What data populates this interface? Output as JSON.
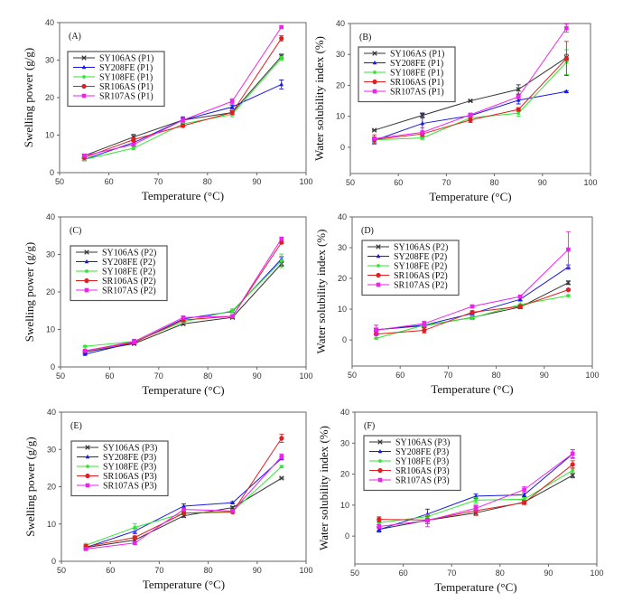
{
  "figure": {
    "series_colors": {
      "SY106AS": "#333333",
      "SY208FE": "#1a1adf",
      "SY108FE": "#33e633",
      "SR106AS": "#e02020",
      "SR107AS": "#ee22ee"
    }
  },
  "chart_data": [
    {
      "id": "A",
      "type": "line",
      "panel_label": "(A)",
      "xlabel": "Temperature (°C)",
      "ylabel": "Swelling power (g/g)",
      "x": [
        55,
        65,
        75,
        85,
        95
      ],
      "xlim": [
        50,
        100
      ],
      "ylim": [
        0,
        40
      ],
      "xticks": [
        50,
        60,
        70,
        80,
        90,
        100
      ],
      "yticks": [
        0,
        10,
        20,
        30,
        40
      ],
      "legend_position": "upper-left",
      "series": [
        {
          "name": "SY106AS (P1)",
          "key": "SY106AS",
          "marker": "x",
          "values": [
            4.5,
            9.5,
            14.0,
            16.0,
            31.0
          ],
          "errors": [
            0.4,
            0.7,
            0.6,
            0.6,
            0.6
          ]
        },
        {
          "name": "SY208FE (P1)",
          "key": "SY208FE",
          "marker": "triangle",
          "values": [
            3.5,
            8.0,
            14.0,
            17.5,
            23.5
          ],
          "errors": [
            0.3,
            0.5,
            0.9,
            0.5,
            1.2
          ]
        },
        {
          "name": "SY108FE (P1)",
          "key": "SY108FE",
          "marker": "dot",
          "values": [
            3.5,
            6.5,
            13.0,
            15.5,
            30.5
          ],
          "errors": [
            0.3,
            0.4,
            0.4,
            0.6,
            0.5
          ]
        },
        {
          "name": "SR106AS (P1)",
          "key": "SR106AS",
          "marker": "circle",
          "values": [
            4.0,
            8.8,
            12.5,
            16.0,
            35.8
          ],
          "errors": [
            0.3,
            0.5,
            0.3,
            0.4,
            0.7
          ]
        },
        {
          "name": "SR107AS (P1)",
          "key": "SR107AS",
          "marker": "square",
          "values": [
            4.5,
            7.5,
            14.0,
            19.0,
            38.8
          ],
          "errors": [
            0.3,
            0.4,
            0.5,
            0.7,
            0.3
          ]
        }
      ]
    },
    {
      "id": "B",
      "type": "line",
      "panel_label": "(B)",
      "xlabel": "Temperature (°C)",
      "ylabel": "Water solubility index (%)",
      "x": [
        55,
        65,
        75,
        85,
        95
      ],
      "xlim": [
        50,
        100
      ],
      "ylim": [
        -8.5,
        40
      ],
      "xticks": [
        50,
        60,
        70,
        80,
        90,
        100
      ],
      "yticks": [
        0,
        10,
        20,
        30,
        40
      ],
      "legend_position": "upper-left",
      "series": [
        {
          "name": "SY106AS (P1)",
          "key": "SY106AS",
          "marker": "x",
          "values": [
            5.5,
            10.3,
            15.0,
            18.7,
            29.0
          ],
          "errors": [
            0.2,
            0.8,
            0.2,
            1.5,
            1.0
          ]
        },
        {
          "name": "SY208FE (P1)",
          "key": "SY208FE",
          "marker": "triangle",
          "values": [
            2.2,
            7.7,
            10.2,
            15.2,
            18.0
          ],
          "errors": [
            0.8,
            3.3,
            0.5,
            1.2,
            0.3
          ]
        },
        {
          "name": "SY108FE (P1)",
          "key": "SY108FE",
          "marker": "dot",
          "values": [
            2.4,
            3.0,
            9.5,
            11.0,
            27.5
          ],
          "errors": [
            0.4,
            0.5,
            0.6,
            1.0,
            4.0
          ]
        },
        {
          "name": "SR106AS (P1)",
          "key": "SR106AS",
          "marker": "circle",
          "values": [
            2.5,
            4.3,
            8.8,
            12.2,
            28.7
          ],
          "errors": [
            1.5,
            0.6,
            0.8,
            0.6,
            5.5
          ]
        },
        {
          "name": "SR107AS (P1)",
          "key": "SR107AS",
          "marker": "square",
          "values": [
            2.8,
            4.8,
            10.5,
            16.3,
            38.5
          ],
          "errors": [
            0.5,
            1.5,
            0.5,
            0.6,
            1.3
          ]
        }
      ]
    },
    {
      "id": "C",
      "type": "line",
      "panel_label": "(C)",
      "xlabel": "Temperature (°C)",
      "ylabel": "Swelling power (g/g)",
      "x": [
        55,
        65,
        75,
        85,
        95
      ],
      "xlim": [
        50,
        100
      ],
      "ylim": [
        0,
        40
      ],
      "xticks": [
        50,
        60,
        70,
        80,
        90,
        100
      ],
      "yticks": [
        0,
        10,
        20,
        30,
        40
      ],
      "legend_position": "upper-left",
      "series": [
        {
          "name": "SY106AS (P2)",
          "key": "SY106AS",
          "marker": "x",
          "values": [
            4.0,
            6.2,
            11.5,
            13.2,
            27.5
          ],
          "errors": [
            0.2,
            0.3,
            0.3,
            0.3,
            0.6
          ]
        },
        {
          "name": "SY208FE (P2)",
          "key": "SY208FE",
          "marker": "triangle",
          "values": [
            3.4,
            6.5,
            12.8,
            14.8,
            28.8
          ],
          "errors": [
            0.2,
            0.3,
            0.3,
            0.3,
            0.6
          ]
        },
        {
          "name": "SY108FE (P2)",
          "key": "SY108FE",
          "marker": "dot",
          "values": [
            5.5,
            6.8,
            12.0,
            15.0,
            28.3
          ],
          "errors": [
            0.2,
            0.3,
            0.3,
            0.5,
            1.8
          ]
        },
        {
          "name": "SR106AS (P2)",
          "key": "SR106AS",
          "marker": "circle",
          "values": [
            4.3,
            6.5,
            12.5,
            13.5,
            33.2
          ],
          "errors": [
            0.2,
            0.3,
            0.3,
            0.3,
            0.3
          ]
        },
        {
          "name": "SR107AS (P2)",
          "key": "SR107AS",
          "marker": "square",
          "values": [
            4.3,
            6.8,
            13.2,
            13.5,
            34.2
          ],
          "errors": [
            0.2,
            0.6,
            0.3,
            0.3,
            0.4
          ]
        }
      ]
    },
    {
      "id": "D",
      "type": "line",
      "panel_label": "(D)",
      "xlabel": "Temperature (°C)",
      "ylabel": "Water solubility index (%)",
      "x": [
        55,
        65,
        75,
        85,
        95
      ],
      "xlim": [
        50,
        100
      ],
      "ylim": [
        -8.5,
        40
      ],
      "xticks": [
        50,
        60,
        70,
        80,
        90,
        100
      ],
      "yticks": [
        0,
        10,
        20,
        30,
        40
      ],
      "legend_position": "upper-left",
      "series": [
        {
          "name": "SY106AS (P2)",
          "key": "SY106AS",
          "marker": "x",
          "values": [
            3.3,
            4.6,
            7.3,
            10.7,
            18.6
          ],
          "errors": [
            0.3,
            0.4,
            0.4,
            0.5,
            0.6
          ]
        },
        {
          "name": "SY208FE (P2)",
          "key": "SY208FE",
          "marker": "triangle",
          "values": [
            3.3,
            4.8,
            8.6,
            13.2,
            23.7
          ],
          "errors": [
            0.3,
            0.4,
            0.4,
            0.5,
            0.7
          ]
        },
        {
          "name": "SY108FE (P2)",
          "key": "SY108FE",
          "marker": "dot",
          "values": [
            0.5,
            4.8,
            7.2,
            11.5,
            14.4
          ],
          "errors": [
            0.2,
            0.4,
            0.6,
            1.0,
            0.3
          ]
        },
        {
          "name": "SR106AS (P2)",
          "key": "SR106AS",
          "marker": "circle",
          "values": [
            1.9,
            3.1,
            9.0,
            10.9,
            16.3
          ],
          "errors": [
            0.3,
            0.8,
            0.5,
            0.5,
            0.3
          ]
        },
        {
          "name": "SR107AS (P2)",
          "key": "SR107AS",
          "marker": "square",
          "values": [
            3.2,
            5.3,
            10.9,
            14.1,
            29.4
          ],
          "errors": [
            1.6,
            0.8,
            0.3,
            0.5,
            5.8
          ]
        }
      ]
    },
    {
      "id": "E",
      "type": "line",
      "panel_label": "(E)",
      "xlabel": "Temperature (°C)",
      "ylabel": "Swelling power (g/g)",
      "x": [
        55,
        65,
        75,
        85,
        95
      ],
      "xlim": [
        50,
        100
      ],
      "ylim": [
        0,
        40
      ],
      "xticks": [
        50,
        60,
        70,
        80,
        90,
        100
      ],
      "yticks": [
        0,
        10,
        20,
        30,
        40
      ],
      "legend_position": "upper-left",
      "series": [
        {
          "name": "SY106AS (P3)",
          "key": "SY106AS",
          "marker": "x",
          "values": [
            3.7,
            5.7,
            12.2,
            14.4,
            22.3
          ],
          "errors": [
            0.3,
            0.4,
            0.4,
            0.3,
            0.2
          ]
        },
        {
          "name": "SY208FE (P3)",
          "key": "SY208FE",
          "marker": "triangle",
          "values": [
            3.7,
            8.1,
            14.8,
            15.7,
            27.6
          ],
          "errors": [
            0.3,
            0.7,
            0.6,
            0.3,
            0.4
          ]
        },
        {
          "name": "SY108FE (P3)",
          "key": "SY108FE",
          "marker": "dot",
          "values": [
            4.3,
            9.1,
            12.9,
            13.4,
            25.4
          ],
          "errors": [
            0.5,
            1.0,
            0.4,
            0.3,
            0.3
          ]
        },
        {
          "name": "SR106AS (P3)",
          "key": "SR106AS",
          "marker": "circle",
          "values": [
            3.9,
            6.4,
            12.9,
            13.2,
            33.0
          ],
          "errors": [
            0.6,
            0.4,
            0.4,
            0.3,
            1.1
          ]
        },
        {
          "name": "SR107AS (P3)",
          "key": "SR107AS",
          "marker": "square",
          "values": [
            3.3,
            4.9,
            13.9,
            13.5,
            28.1
          ],
          "errors": [
            0.3,
            0.4,
            0.4,
            0.3,
            0.7
          ]
        }
      ]
    },
    {
      "id": "F",
      "type": "line",
      "panel_label": "(F)",
      "xlabel": "Temperature (°C)",
      "ylabel": "Water solubility index (%)",
      "x": [
        55,
        65,
        75,
        85,
        95
      ],
      "xlim": [
        50,
        100
      ],
      "ylim": [
        -9,
        40
      ],
      "xticks": [
        50,
        60,
        70,
        80,
        90,
        100
      ],
      "yticks": [
        0,
        10,
        20,
        30,
        40
      ],
      "legend_position": "upper-left",
      "series": [
        {
          "name": "SY106AS (P3)",
          "key": "SY106AS",
          "marker": "x",
          "values": [
            2.2,
            5.1,
            7.5,
            11.0,
            19.6
          ],
          "errors": [
            0.8,
            0.5,
            0.8,
            0.5,
            0.8
          ]
        },
        {
          "name": "SY208FE (P3)",
          "key": "SY208FE",
          "marker": "triangle",
          "values": [
            2.1,
            7.1,
            12.9,
            13.3,
            26.5
          ],
          "errors": [
            0.8,
            1.6,
            0.7,
            0.6,
            1.4
          ]
        },
        {
          "name": "SY108FE (P3)",
          "key": "SY108FE",
          "marker": "dot",
          "values": [
            4.3,
            6.3,
            11.6,
            11.9,
            21.2
          ],
          "errors": [
            0.5,
            0.5,
            0.9,
            0.5,
            0.8
          ]
        },
        {
          "name": "SR106AS (P3)",
          "key": "SR106AS",
          "marker": "circle",
          "values": [
            5.4,
            5.2,
            8.2,
            10.8,
            23.1
          ],
          "errors": [
            0.8,
            1.2,
            1.5,
            0.6,
            1.2
          ]
        },
        {
          "name": "SR107AS (P3)",
          "key": "SR107AS",
          "marker": "square",
          "values": [
            3.1,
            5.0,
            9.0,
            15.0,
            26.6
          ],
          "errors": [
            0.6,
            2.0,
            1.0,
            1.0,
            1.3
          ]
        }
      ]
    }
  ]
}
